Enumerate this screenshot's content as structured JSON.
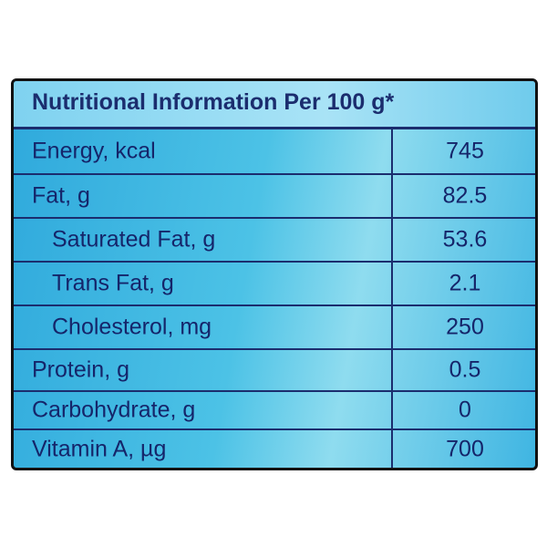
{
  "header": {
    "title": "Nutritional Information Per 100 g*"
  },
  "table": {
    "rows": [
      [
        "Energy, kcal",
        745
      ],
      [
        "Fat, g",
        82.5
      ],
      [
        "Saturated Fat, g",
        53.6
      ],
      [
        "Trans Fat, g",
        2.1
      ],
      [
        "Cholesterol, mg",
        250
      ],
      [
        "Protein, g",
        0.5
      ],
      [
        "Carbohydrate, g",
        0
      ],
      [
        "Vitamin A, µg",
        700
      ]
    ]
  }
}
